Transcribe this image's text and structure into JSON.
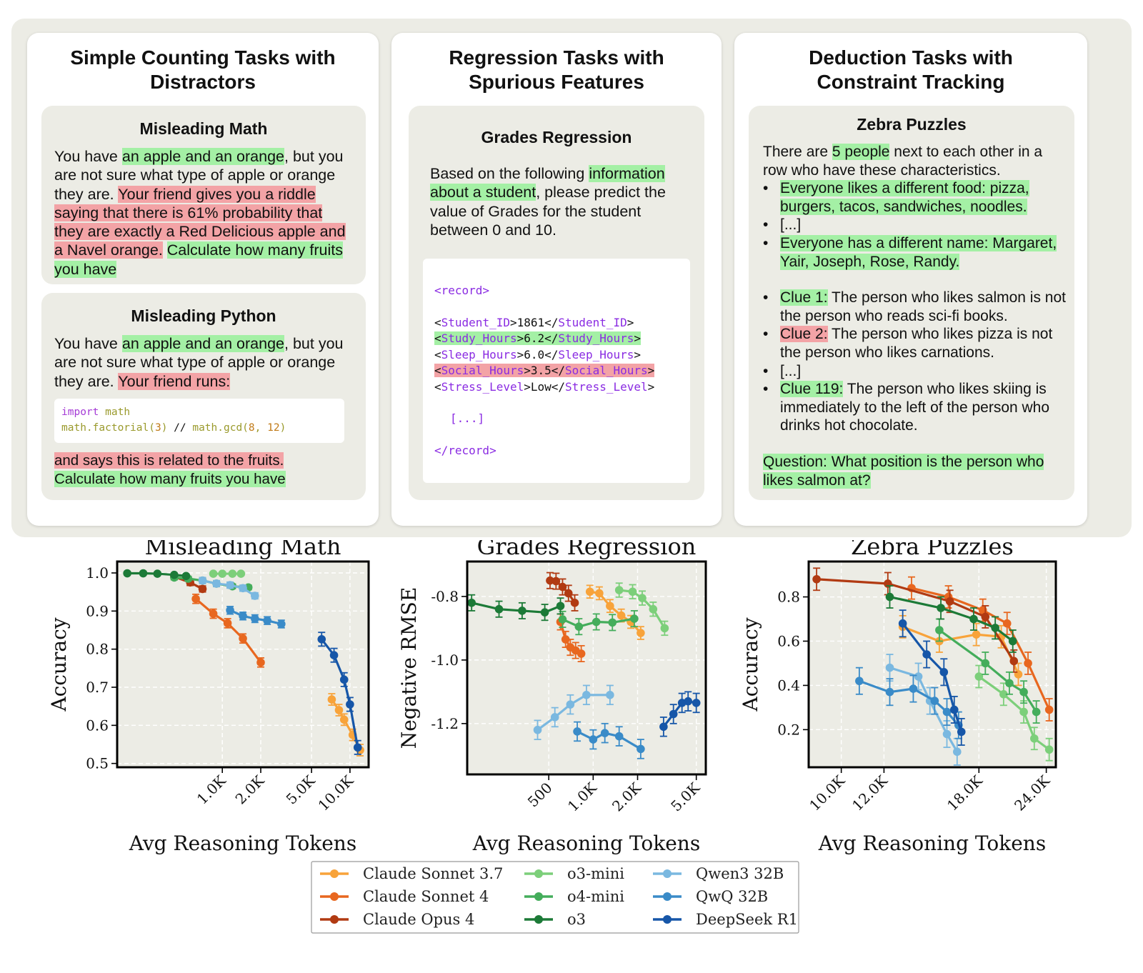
{
  "colors": {
    "sonnet37": "#f8a33a",
    "sonnet4": "#e8671f",
    "opus4": "#b13a12",
    "o3mini": "#7ccf7a",
    "o4mini": "#44ad5b",
    "o3": "#1c7a37",
    "qwen3": "#7ab8e0",
    "qwq": "#3a8bc8",
    "r1": "#1656a8",
    "panel_bg": "#ecece5",
    "highlight_green": "#a4f0a5",
    "highlight_red": "#f3a3a6"
  },
  "cards": {
    "counting": {
      "title": "Simple Counting Tasks with\nDistractors",
      "math_title": "Misleading Math",
      "math": {
        "t1": "You have ",
        "g1": "an apple and an orange",
        "t2": ", but you are not sure what type of apple or orange they are. ",
        "r1": "Your friend gives you a riddle saying that there is 61% probability that they are exactly a Red Delicious apple and a Navel orange.",
        "t3": " ",
        "g2": "Calculate how many fruits you have"
      },
      "python_title": "Misleading Python",
      "python": {
        "t1": "You have ",
        "g1": "an apple and an orange",
        "t2": ", but you are not sure what type of apple or orange they are. ",
        "r1": "Your friend runs:",
        "code_import": "import",
        "code_module": "math",
        "code_fn1": "math.factorial(",
        "code_n1": "3",
        "code_close1": ")",
        "code_op": " // ",
        "code_fn2": "math.gcd(",
        "code_n2": "8",
        "code_comma": ", ",
        "code_n3": "12",
        "code_close2": ")",
        "r2": "and says this is related to the fruits.",
        "g2": "Calculate how many fruits you have"
      }
    },
    "regression": {
      "title": "Regression Tasks with\nSpurious Features",
      "box_title": "Grades Regression",
      "prose": {
        "t1": "Based on the following ",
        "g1": "information about a student",
        "t2": ", please predict the value of Grades for the student between 0 and 10."
      },
      "record": {
        "open": "<record>",
        "close": "</record>",
        "ellipsis": "[...]",
        "fields": [
          {
            "name": "Student_ID",
            "value": "1861",
            "hl": ""
          },
          {
            "name": "Study_Hours",
            "value": "6.2",
            "hl": "g"
          },
          {
            "name": "Sleep_Hours",
            "value": "6.0",
            "hl": ""
          },
          {
            "name": "Social_Hours",
            "value": "3.5",
            "hl": "r"
          },
          {
            "name": "Stress_Level",
            "value": "Low",
            "hl": ""
          }
        ]
      }
    },
    "deduction": {
      "title": "Deduction Tasks with\nConstraint Tracking",
      "box_title": "Zebra Puzzles",
      "intro": {
        "t1": "There are ",
        "g1": "5 people",
        "t2": " next to each other in a row who have these characteristics."
      },
      "bullets": [
        {
          "g": "Everyone likes a different food: pizza, burgers, tacos, sandwiches, noodles."
        },
        {
          "t": "[...]"
        },
        {
          "g": "Everyone has a different name: Margaret, Yair, Joseph, Rose, Randy."
        }
      ],
      "clues": [
        {
          "label": "Clue 1:",
          "hl": "g",
          "text": " The person who likes salmon is not the person who reads sci-fi books."
        },
        {
          "label": "Clue 2:",
          "hl": "r",
          "text": " The person who likes pizza is not the person who likes carnations."
        },
        {
          "label": "",
          "hl": "",
          "text": "[...]"
        },
        {
          "label": "Clue 119:",
          "hl": "g",
          "text": " The person who likes skiing is immediately to the left of the person who drinks hot chocolate."
        }
      ],
      "question": "Question: What position is the person who likes salmon at?"
    }
  },
  "chart_data": [
    {
      "type": "line",
      "title": "Misleading Math",
      "xlabel": "Avg Reasoning Tokens",
      "ylabel": "Accuracy",
      "xscale": "log",
      "xlim": [
        150,
        14000
      ],
      "ylim": [
        0.49,
        1.03
      ],
      "xticks": [
        {
          "v": 1000,
          "label": "1.0K"
        },
        {
          "v": 2000,
          "label": "2.0K"
        },
        {
          "v": 5000,
          "label": "5.0K"
        },
        {
          "v": 10000,
          "label": "10.0K"
        }
      ],
      "yticks": [
        {
          "v": 0.5,
          "label": "0.5"
        },
        {
          "v": 0.6,
          "label": "0.6"
        },
        {
          "v": 0.7,
          "label": "0.7"
        },
        {
          "v": 0.8,
          "label": "0.8"
        },
        {
          "v": 0.9,
          "label": "0.9"
        },
        {
          "v": 1.0,
          "label": "1.0"
        }
      ],
      "series": [
        {
          "name": "Claude Sonnet 3.7",
          "color": "#f8a33a",
          "x": [
            7200,
            8200,
            9000,
            10500,
            12000
          ],
          "y": [
            0.668,
            0.64,
            0.615,
            0.575,
            0.535
          ],
          "err": 0.015
        },
        {
          "name": "Claude Sonnet 4",
          "color": "#e8671f",
          "x": [
            620,
            850,
            1100,
            1450,
            2000
          ],
          "y": [
            0.932,
            0.893,
            0.868,
            0.828,
            0.765
          ],
          "err": 0.012
        },
        {
          "name": "Claude Opus 4",
          "color": "#b13a12",
          "x": [
            420,
            560,
            700
          ],
          "y": [
            0.99,
            0.975,
            0.958
          ],
          "err": 0.008
        },
        {
          "name": "o3-mini",
          "color": "#7ccf7a",
          "x": [
            850,
            1000,
            1200,
            1400
          ],
          "y": [
            0.998,
            0.998,
            0.998,
            0.998
          ],
          "err": 0.004
        },
        {
          "name": "o4-mini",
          "color": "#44ad5b",
          "x": [
            420,
            540,
            700,
            900,
            1200,
            1600
          ],
          "y": [
            0.988,
            0.985,
            0.98,
            0.972,
            0.965,
            0.962
          ],
          "err": 0.006
        },
        {
          "name": "o3",
          "color": "#1c7a37",
          "x": [
            180,
            240,
            310,
            420,
            520
          ],
          "y": [
            0.999,
            0.999,
            0.998,
            0.995,
            0.992
          ],
          "err": 0.004
        },
        {
          "name": "Qwen3 32B",
          "color": "#7ab8e0",
          "x": [
            700,
            900,
            1150,
            1450,
            1800
          ],
          "y": [
            0.98,
            0.972,
            0.968,
            0.96,
            0.94
          ],
          "err": 0.008
        },
        {
          "name": "QwQ 32B",
          "color": "#3a8bc8",
          "x": [
            1150,
            1450,
            1800,
            2250,
            2900
          ],
          "y": [
            0.902,
            0.887,
            0.88,
            0.875,
            0.866
          ],
          "err": 0.01
        },
        {
          "name": "DeepSeek R1",
          "color": "#1656a8",
          "x": [
            6000,
            7500,
            9000,
            10000,
            11500
          ],
          "y": [
            0.826,
            0.784,
            0.72,
            0.655,
            0.542
          ],
          "err": 0.018
        }
      ]
    },
    {
      "type": "line",
      "title": "Grades Regression",
      "xlabel": "Avg Reasoning Tokens",
      "ylabel": "Negative RMSE",
      "xscale": "log",
      "xlim": [
        140,
        5800
      ],
      "ylim": [
        -1.36,
        -0.69
      ],
      "xticks": [
        {
          "v": 500,
          "label": "500"
        },
        {
          "v": 1000,
          "label": "1.0K"
        },
        {
          "v": 2000,
          "label": "2.0K"
        },
        {
          "v": 5000,
          "label": "5.0K"
        }
      ],
      "yticks": [
        {
          "v": -1.2,
          "label": "-1.2"
        },
        {
          "v": -1.0,
          "label": "-1.0"
        },
        {
          "v": -0.8,
          "label": "-0.8"
        }
      ],
      "series": [
        {
          "name": "Claude Sonnet 3.7",
          "color": "#f8a33a",
          "x": [
            950,
            1100,
            1300,
            1550,
            1800,
            2100
          ],
          "y": [
            -0.785,
            -0.79,
            -0.83,
            -0.86,
            -0.88,
            -0.915
          ],
          "err": 0.02
        },
        {
          "name": "Claude Sonnet 4",
          "color": "#e8671f",
          "x": [
            600,
            650,
            700,
            760,
            830
          ],
          "y": [
            -0.88,
            -0.935,
            -0.96,
            -0.97,
            -0.98
          ],
          "err": 0.025
        },
        {
          "name": "Claude Opus 4",
          "color": "#b13a12",
          "x": [
            510,
            560,
            620,
            680,
            750
          ],
          "y": [
            -0.75,
            -0.752,
            -0.77,
            -0.79,
            -0.82
          ],
          "err": 0.025
        },
        {
          "name": "o3-mini",
          "color": "#7ccf7a",
          "x": [
            1500,
            1850,
            2150,
            2550,
            3050
          ],
          "y": [
            -0.78,
            -0.785,
            -0.805,
            -0.84,
            -0.9
          ],
          "err": 0.022
        },
        {
          "name": "o4-mini",
          "color": "#44ad5b",
          "x": [
            620,
            800,
            1050,
            1350,
            1900
          ],
          "y": [
            -0.872,
            -0.895,
            -0.88,
            -0.882,
            -0.87
          ],
          "err": 0.025
        },
        {
          "name": "o3",
          "color": "#1c7a37",
          "x": [
            150,
            230,
            330,
            470,
            600
          ],
          "y": [
            -0.82,
            -0.84,
            -0.845,
            -0.85,
            -0.83
          ],
          "err": 0.025
        },
        {
          "name": "Qwen3 32B",
          "color": "#7ab8e0",
          "x": [
            420,
            550,
            700,
            900,
            1300
          ],
          "y": [
            -1.22,
            -1.18,
            -1.14,
            -1.11,
            -1.11
          ],
          "err": 0.03
        },
        {
          "name": "QwQ 32B",
          "color": "#3a8bc8",
          "x": [
            780,
            1000,
            1200,
            1500,
            2100
          ],
          "y": [
            -1.225,
            -1.25,
            -1.23,
            -1.24,
            -1.28
          ],
          "err": 0.03
        },
        {
          "name": "DeepSeek R1",
          "color": "#1656a8",
          "x": [
            3000,
            3500,
            4000,
            4400,
            5000
          ],
          "y": [
            -1.21,
            -1.17,
            -1.135,
            -1.13,
            -1.135
          ],
          "err": 0.03
        }
      ]
    },
    {
      "type": "line",
      "title": "Zebra Puzzles",
      "xlabel": "Avg Reasoning Tokens",
      "ylabel": "Accuracy",
      "xscale": "log",
      "xlim": [
        8700,
        25000
      ],
      "ylim": [
        0.03,
        0.96
      ],
      "xticks": [
        {
          "v": 10000,
          "label": "10.0K"
        },
        {
          "v": 12000,
          "label": "12.0K"
        },
        {
          "v": 18000,
          "label": "18.0K"
        },
        {
          "v": 24000,
          "label": "24.0K"
        }
      ],
      "yticks": [
        {
          "v": 0.2,
          "label": "0.2"
        },
        {
          "v": 0.4,
          "label": "0.4"
        },
        {
          "v": 0.6,
          "label": "0.6"
        },
        {
          "v": 0.8,
          "label": "0.8"
        }
      ],
      "series": [
        {
          "name": "Claude Sonnet 3.7",
          "color": "#f8a33a",
          "x": [
            13000,
            15200,
            17800,
            19800,
            21300
          ],
          "y": [
            0.665,
            0.6,
            0.63,
            0.62,
            0.45
          ],
          "err": 0.05
        },
        {
          "name": "Claude Sonnet 4",
          "color": "#e8671f",
          "x": [
            13500,
            15800,
            18300,
            20300,
            22200,
            24300
          ],
          "y": [
            0.84,
            0.8,
            0.74,
            0.68,
            0.5,
            0.29
          ],
          "err": 0.05
        },
        {
          "name": "Claude Opus 4",
          "color": "#b13a12",
          "x": [
            9000,
            12200,
            15900,
            18500,
            20900
          ],
          "y": [
            0.88,
            0.86,
            0.78,
            0.71,
            0.51
          ],
          "err": 0.05
        },
        {
          "name": "o3-mini",
          "color": "#7ccf7a",
          "x": [
            18000,
            20000,
            21800,
            22800,
            24300
          ],
          "y": [
            0.44,
            0.36,
            0.28,
            0.16,
            0.11
          ],
          "err": 0.05
        },
        {
          "name": "o4-mini",
          "color": "#44ad5b",
          "x": [
            15200,
            18500,
            20500,
            21800,
            23000
          ],
          "y": [
            0.65,
            0.5,
            0.41,
            0.37,
            0.28
          ],
          "err": 0.05
        },
        {
          "name": "o3",
          "color": "#1c7a37",
          "x": [
            12300,
            15300,
            17600,
            19300,
            20800
          ],
          "y": [
            0.8,
            0.75,
            0.7,
            0.66,
            0.6
          ],
          "err": 0.05
        },
        {
          "name": "Qwen3 32B",
          "color": "#7ab8e0",
          "x": [
            12300,
            13900,
            14600,
            15700,
            16400
          ],
          "y": [
            0.48,
            0.44,
            0.33,
            0.18,
            0.1
          ],
          "err": 0.06
        },
        {
          "name": "QwQ 32B",
          "color": "#3a8bc8",
          "x": [
            10800,
            12300,
            13600,
            14900,
            15700,
            16500
          ],
          "y": [
            0.42,
            0.37,
            0.385,
            0.33,
            0.28,
            0.22
          ],
          "err": 0.06
        },
        {
          "name": "DeepSeek R1",
          "color": "#1656a8",
          "x": [
            13000,
            14400,
            15500,
            16200,
            16700
          ],
          "y": [
            0.68,
            0.54,
            0.46,
            0.29,
            0.19
          ],
          "err": 0.06
        }
      ]
    }
  ],
  "legend": [
    {
      "label": "Claude Sonnet 3.7",
      "color": "#f8a33a"
    },
    {
      "label": "Claude Sonnet 4",
      "color": "#e8671f"
    },
    {
      "label": "Claude Opus 4",
      "color": "#b13a12"
    },
    {
      "label": "o3-mini",
      "color": "#7ccf7a"
    },
    {
      "label": "o4-mini",
      "color": "#44ad5b"
    },
    {
      "label": "o3",
      "color": "#1c7a37"
    },
    {
      "label": "Qwen3 32B",
      "color": "#7ab8e0"
    },
    {
      "label": "QwQ 32B",
      "color": "#3a8bc8"
    },
    {
      "label": "DeepSeek R1",
      "color": "#1656a8"
    }
  ]
}
